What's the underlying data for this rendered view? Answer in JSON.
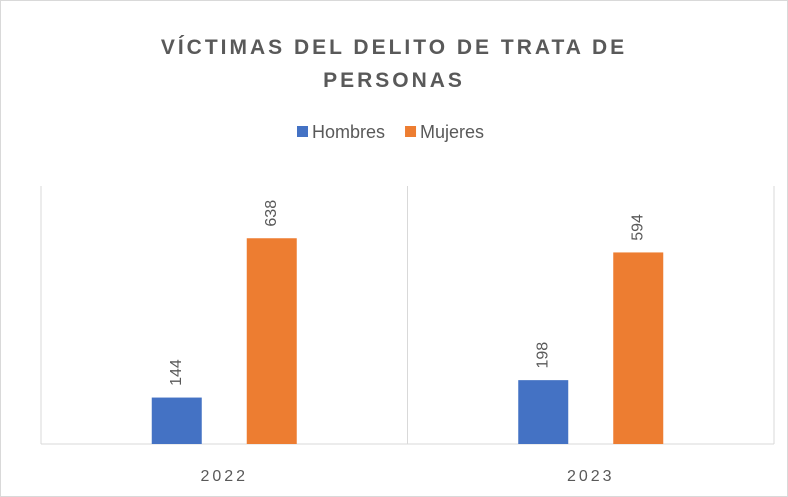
{
  "chart_data": {
    "type": "bar",
    "title": "VÍCTIMAS DEL DELITO DE TRATA DE PERSONAS",
    "categories": [
      "2022",
      "2023"
    ],
    "series": [
      {
        "name": "Hombres",
        "color": "#4472c4",
        "values": [
          144,
          198
        ]
      },
      {
        "name": "Mujeres",
        "color": "#ed7d31",
        "values": [
          638,
          594
        ]
      }
    ],
    "ylim": [
      0,
      800
    ],
    "legend": "top"
  }
}
